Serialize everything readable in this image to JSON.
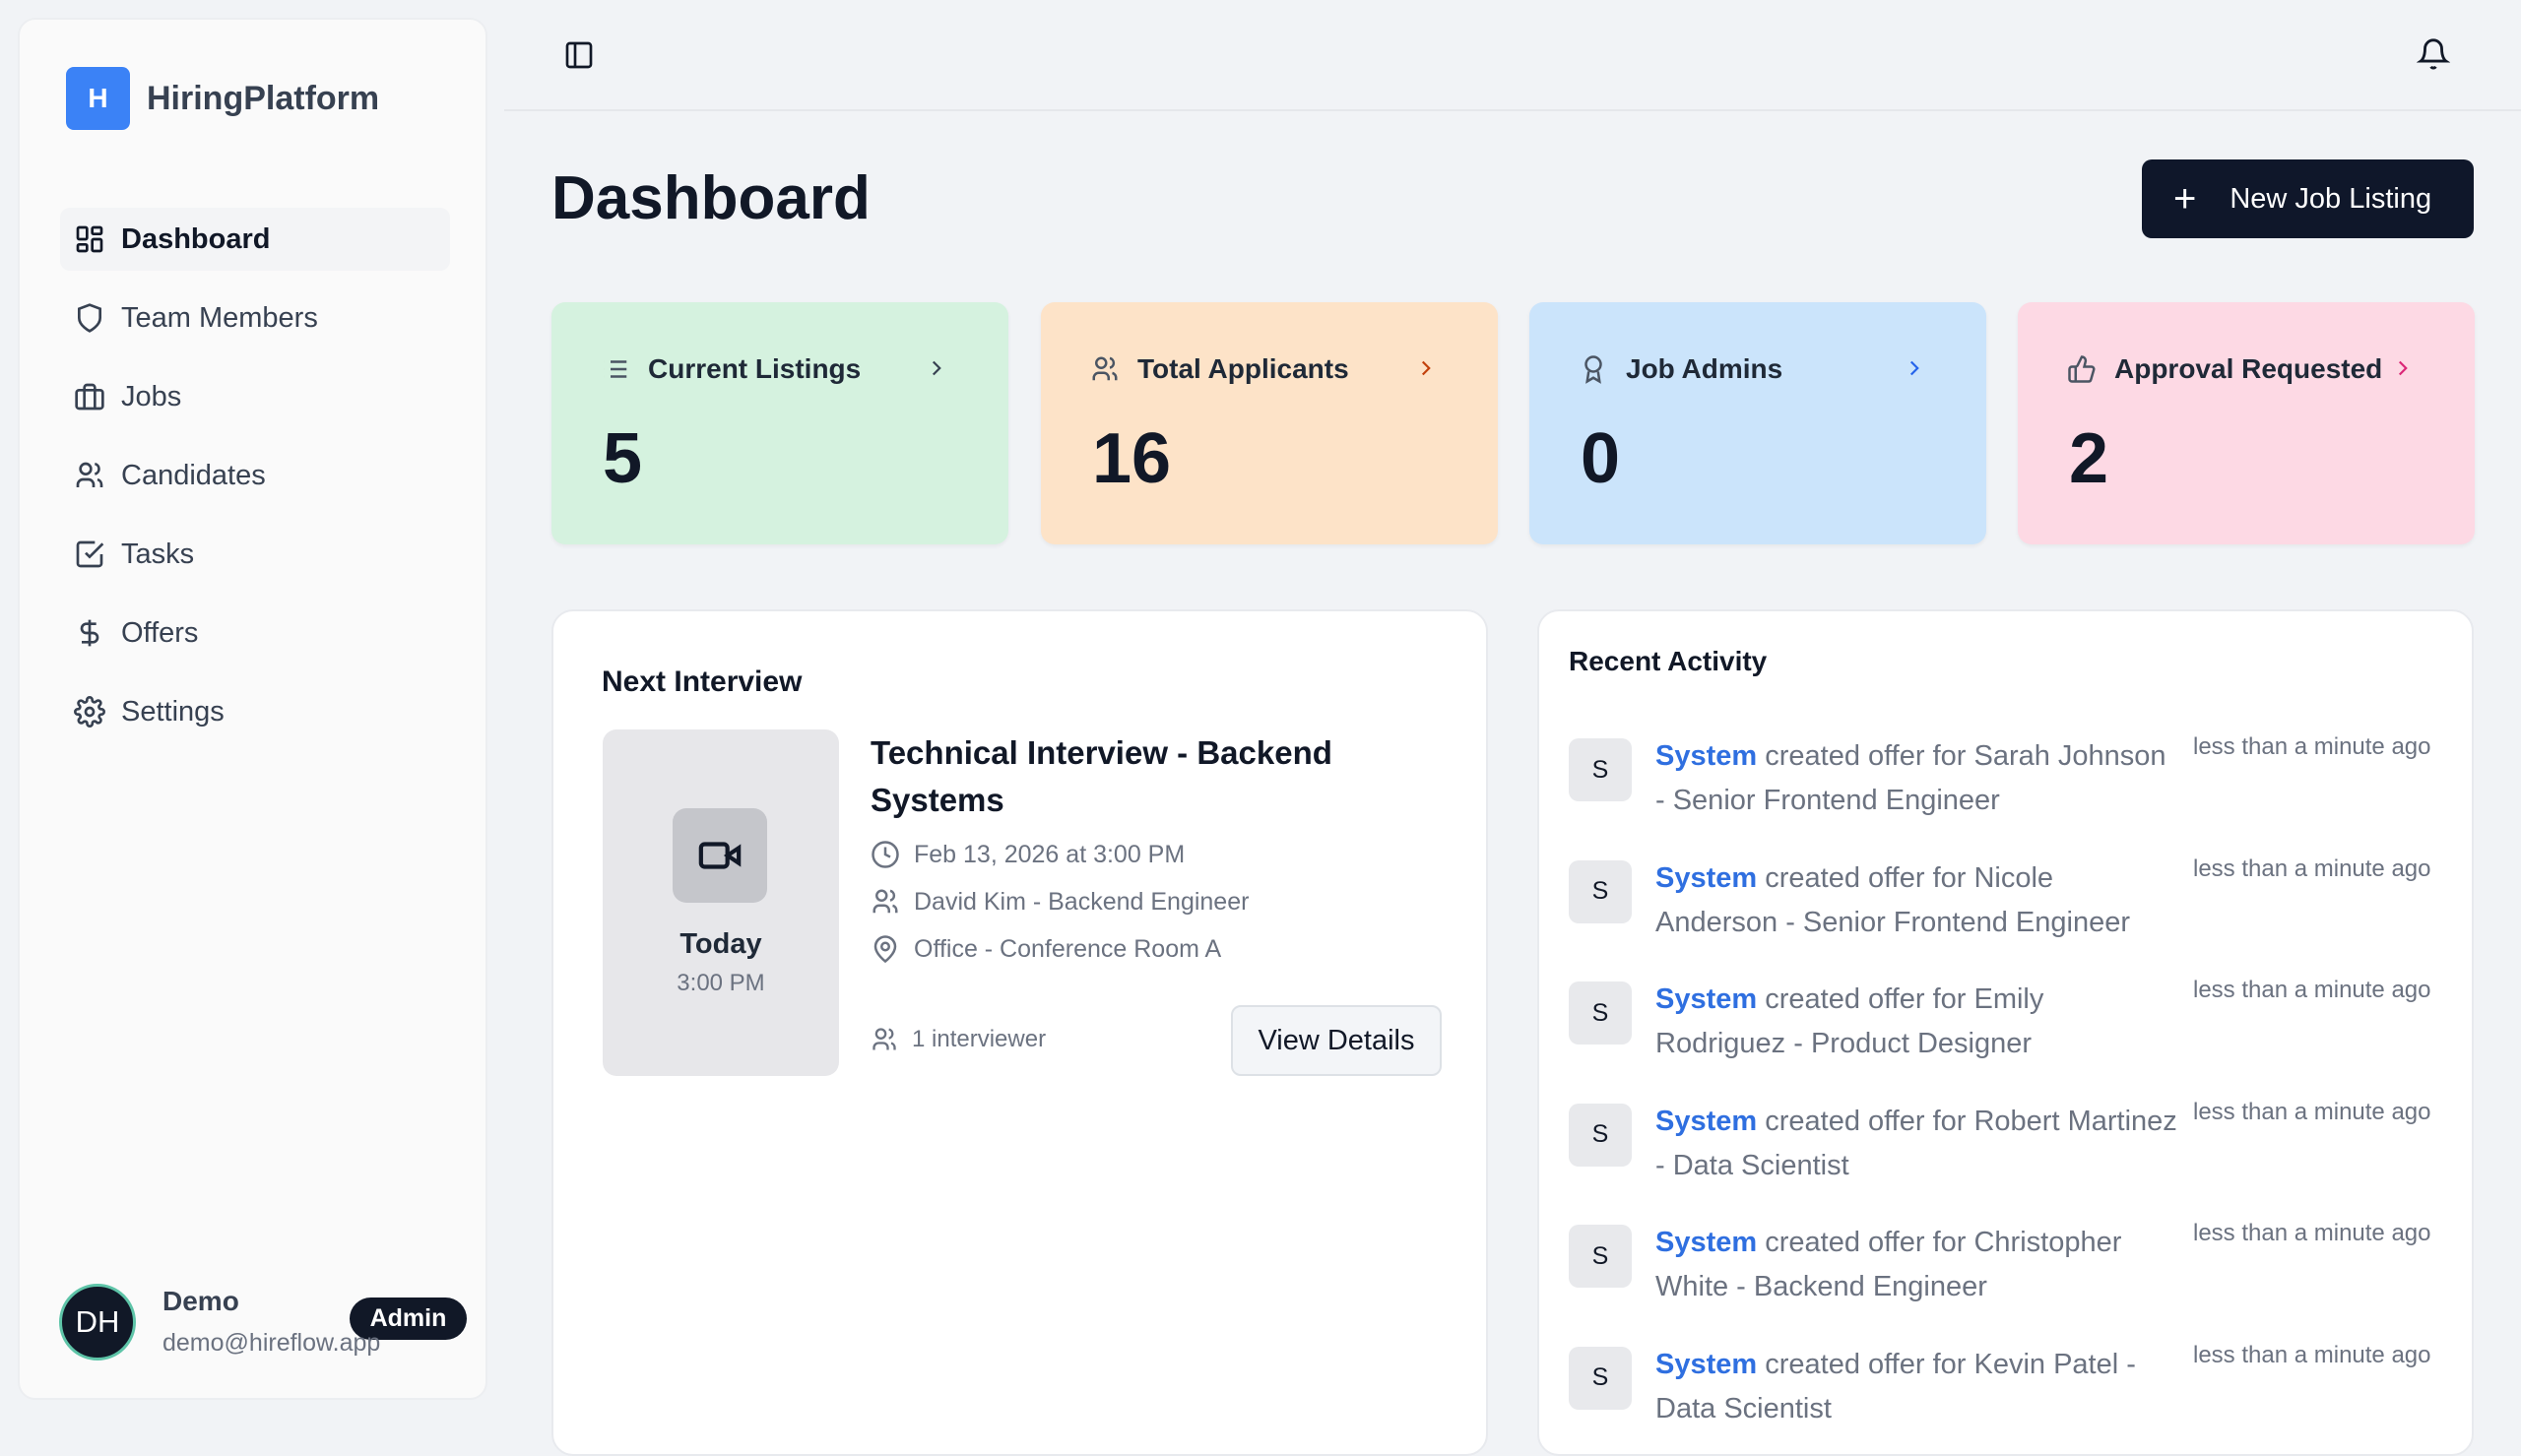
{
  "app": {
    "name": "HiringPlatform",
    "logo_letter": "H",
    "brand_color": "#3b82f6"
  },
  "sidebar": {
    "items": [
      {
        "label": "Dashboard",
        "icon": "layout-dashboard-icon",
        "active": true
      },
      {
        "label": "Team Members",
        "icon": "shield-icon"
      },
      {
        "label": "Jobs",
        "icon": "briefcase-icon"
      },
      {
        "label": "Candidates",
        "icon": "users-icon"
      },
      {
        "label": "Tasks",
        "icon": "check-square-icon"
      },
      {
        "label": "Offers",
        "icon": "dollar-icon"
      },
      {
        "label": "Settings",
        "icon": "gear-icon"
      }
    ]
  },
  "user": {
    "initials": "DH",
    "name": "Demo",
    "email": "demo@hireflow.app",
    "role": "Admin"
  },
  "header": {
    "title": "Dashboard",
    "new_button": "New Job Listing"
  },
  "stats": [
    {
      "label": "Current Listings",
      "value": "5",
      "bg": "#d5f2df",
      "chevron": "#374151"
    },
    {
      "label": "Total Applicants",
      "value": "16",
      "bg": "#fde3c8",
      "chevron": "#c2410c"
    },
    {
      "label": "Job Admins",
      "value": "0",
      "bg": "#cbe4fb",
      "chevron": "#2563eb"
    },
    {
      "label": "Approval Requested",
      "value": "2",
      "bg": "#fdd9e4",
      "chevron": "#db2777"
    }
  ],
  "next_interview": {
    "heading": "Next Interview",
    "day": "Today",
    "time": "3:00 PM",
    "title": "Technical Interview - Backend Systems",
    "datetime": "Feb 13, 2026 at 3:00 PM",
    "candidate": "David Kim - Backend Engineer",
    "location": "Office - Conference Room A",
    "interviewers": "1 interviewer",
    "button": "View Details"
  },
  "recent_activity": {
    "heading": "Recent Activity",
    "accent": "#2f6fe0",
    "items": [
      {
        "avatar": "S",
        "actor": "System",
        "text": " created offer for Sarah Johnson - Senior Frontend Engineer",
        "time": "less than a minute ago"
      },
      {
        "avatar": "S",
        "actor": "System",
        "text": " created offer for Nicole Anderson - Senior Frontend Engineer",
        "time": "less than a minute ago"
      },
      {
        "avatar": "S",
        "actor": "System",
        "text": " created offer for Emily Rodriguez - Product Designer",
        "time": "less than a minute ago"
      },
      {
        "avatar": "S",
        "actor": "System",
        "text": " created offer for Robert Martinez - Data Scientist",
        "time": "less than a minute ago"
      },
      {
        "avatar": "S",
        "actor": "System",
        "text": " created offer for Christopher White - Backend Engineer",
        "time": "less than a minute ago"
      },
      {
        "avatar": "S",
        "actor": "System",
        "text": " created offer for Kevin Patel - Data Scientist",
        "time": "less than a minute ago"
      }
    ]
  }
}
